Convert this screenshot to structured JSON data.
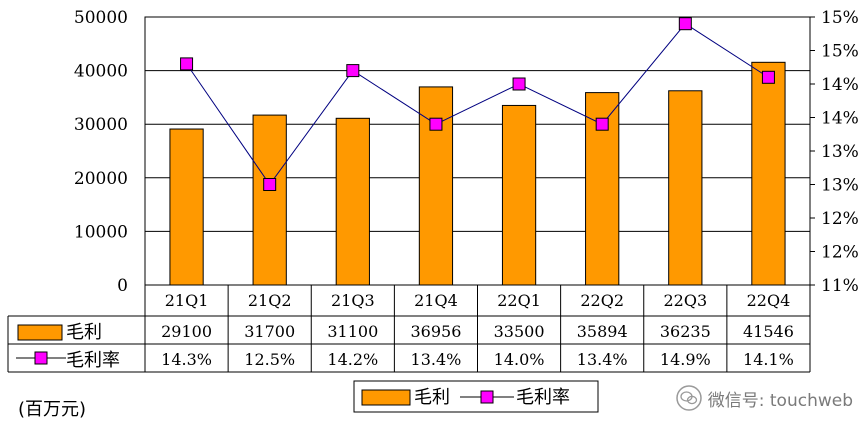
{
  "chart_data": {
    "type": "bar",
    "categories": [
      "21Q1",
      "21Q2",
      "21Q3",
      "21Q4",
      "22Q1",
      "22Q2",
      "22Q3",
      "22Q4"
    ],
    "series": [
      {
        "name": "毛利",
        "kind": "bar",
        "axis": "left",
        "values": [
          29100,
          31700,
          31100,
          36956,
          33500,
          35894,
          36235,
          41546
        ],
        "labels": [
          "29100",
          "31700",
          "31100",
          "36956",
          "33500",
          "35894",
          "36235",
          "41546"
        ],
        "color": "#FF9900"
      },
      {
        "name": "毛利率",
        "kind": "line",
        "axis": "right",
        "values": [
          14.3,
          12.5,
          14.2,
          13.4,
          14.0,
          13.4,
          14.9,
          14.1
        ],
        "labels": [
          "14.3%",
          "12.5%",
          "14.2%",
          "13.4%",
          "14.0%",
          "13.4%",
          "14.9%",
          "14.1%"
        ],
        "color": "#FF00FF",
        "line_color": "#000080"
      }
    ],
    "ylim": [
      0,
      50000
    ],
    "y_ticks": [
      "50000",
      "40000",
      "30000",
      "20000",
      "10000",
      "0"
    ],
    "y2lim": [
      11,
      15
    ],
    "y2_ticks": [
      "15%",
      "15%",
      "14%",
      "14%",
      "13%",
      "13%",
      "12%",
      "12%",
      "11%"
    ],
    "unit_label": "(百万元)",
    "grid": true,
    "legend": "bottom",
    "data_table": true
  },
  "watermark": {
    "text": "微信号: touchweb",
    "icon": "wechat-icon"
  }
}
